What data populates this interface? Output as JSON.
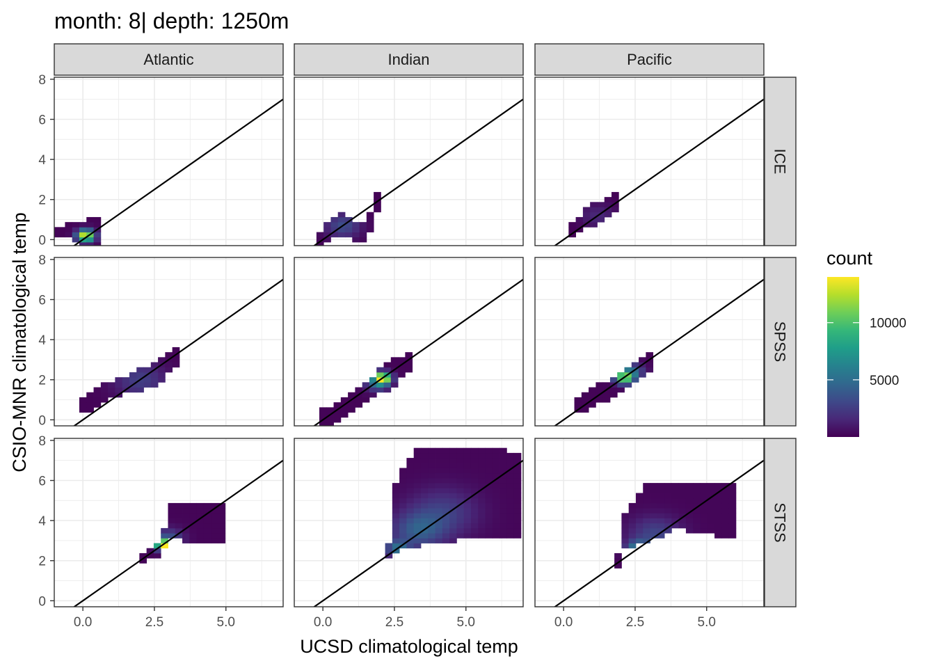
{
  "chart_data": {
    "type": "heatmap",
    "title": "month: 8| depth: 1250m",
    "xlabel": "UCSD climatological temp",
    "ylabel": "CSIO-MNR climatological temp",
    "col_facets": [
      "Atlantic",
      "Indian",
      "Pacific"
    ],
    "row_facets": [
      "ICE",
      "SPSS",
      "STSS"
    ],
    "xlim": [
      -1.0,
      7.0
    ],
    "ylim": [
      -0.3,
      8.1
    ],
    "x_ticks": [
      0.0,
      2.5,
      5.0
    ],
    "x_tick_labels": [
      "0.0",
      "2.5",
      "5.0"
    ],
    "y_ticks": [
      0,
      2,
      4,
      6,
      8
    ],
    "y_tick_labels": [
      "0",
      "2",
      "4",
      "6",
      "8"
    ],
    "bin_width": 0.25,
    "reference_line": {
      "intercept": 0,
      "slope": 1
    },
    "legend": {
      "title": "count",
      "breaks": [
        5000,
        10000
      ],
      "break_labels": [
        "5000",
        "10000"
      ],
      "range": [
        0,
        14000
      ],
      "colormap": "viridis"
    },
    "grid": true,
    "panels": [
      {
        "col": "Atlantic",
        "row": "ICE",
        "shape": [
          [
            -1.0,
            0.3,
            0.45,
            0.15
          ],
          [
            -0.5,
            0.15,
            0.5,
            0.25
          ],
          [
            0.4,
            1.5,
            0.35,
            0.8
          ],
          [
            0.5,
            1.5,
            0.15,
            1.0
          ]
        ],
        "peaks": [
          [
            0.1,
            0.2,
            14000,
            0.3
          ]
        ],
        "base": 120
      },
      {
        "col": "Indian",
        "row": "ICE",
        "shape": [
          [
            -0.1,
            0.0,
            0.0,
            0.4
          ],
          [
            0.5,
            0.35,
            0.9,
            0.45
          ],
          [
            1.5,
            1.7,
            0.35,
            0.45
          ],
          [
            1.9,
            1.7,
            1.95,
            0.35
          ]
        ],
        "peaks": [
          [
            0.7,
            0.7,
            3200,
            0.6
          ]
        ],
        "base": 100
      },
      {
        "col": "Pacific",
        "row": "ICE",
        "shape": [
          [
            0.3,
            0.5,
            0.5,
            0.35
          ],
          [
            0.9,
            0.5,
            1.2,
            0.45
          ],
          [
            1.9,
            1.5,
            1.95,
            0.4
          ]
        ],
        "peaks": [
          [
            1.2,
            1.2,
            1500,
            0.6
          ]
        ],
        "base": 80
      },
      {
        "col": "Atlantic",
        "row": "SPSS",
        "shape": [
          [
            0.0,
            0.0,
            0.8,
            0.4
          ],
          [
            1.0,
            0.9,
            1.6,
            0.35
          ],
          [
            2.5,
            2.8,
            2.3,
            0.5
          ],
          [
            3.3,
            3.3,
            3.3,
            0.5
          ]
        ],
        "peaks": [
          [
            2.0,
            2.0,
            2500,
            0.9
          ]
        ],
        "base": 120
      },
      {
        "col": "Indian",
        "row": "SPSS",
        "shape": [
          [
            0.0,
            0.0,
            0.0,
            0.5
          ],
          [
            1.2,
            1.2,
            1.15,
            0.45
          ],
          [
            2.2,
            2.0,
            2.15,
            0.6
          ],
          [
            3.1,
            3.0,
            3.0,
            0.5
          ]
        ],
        "peaks": [
          [
            2.1,
            2.1,
            13500,
            0.28
          ],
          [
            1.9,
            1.85,
            5000,
            0.4
          ]
        ],
        "base": 130
      },
      {
        "col": "Pacific",
        "row": "SPSS",
        "shape": [
          [
            0.5,
            0.5,
            0.8,
            0.35
          ],
          [
            1.5,
            1.4,
            1.5,
            0.45
          ],
          [
            2.6,
            2.7,
            2.55,
            0.5
          ],
          [
            3.0,
            3.0,
            3.0,
            0.45
          ]
        ],
        "peaks": [
          [
            2.1,
            2.1,
            11500,
            0.3
          ],
          [
            2.4,
            2.4,
            5000,
            0.4
          ]
        ],
        "base": 110
      },
      {
        "col": "Atlantic",
        "row": "STSS",
        "shape": [
          [
            2.1,
            2.6,
            2.2,
            0.2
          ],
          [
            2.6,
            2.8,
            2.6,
            0.35
          ],
          [
            2.9,
            2.9,
            3.3,
            0.45
          ],
          [
            3.1,
            4.8,
            4.0,
            0.85
          ],
          [
            4.9,
            5.1,
            4.0,
            1.0
          ]
        ],
        "peaks": [
          [
            2.8,
            2.8,
            14000,
            0.25
          ],
          [
            3.0,
            3.1,
            3500,
            0.5
          ]
        ],
        "base": 150
      },
      {
        "col": "Indian",
        "row": "STSS",
        "shape": [
          [
            2.3,
            2.7,
            2.5,
            0.35
          ],
          [
            2.5,
            3.0,
            4.2,
            1.6
          ],
          [
            3.2,
            4.0,
            5.2,
            2.4
          ],
          [
            4.5,
            5.8,
            5.4,
            2.3
          ],
          [
            5.8,
            6.8,
            5.5,
            2.2
          ],
          [
            6.9,
            6.9,
            5.3,
            2.05
          ]
        ],
        "peaks": [
          [
            2.6,
            2.6,
            4500,
            0.4
          ],
          [
            3.3,
            3.5,
            3500,
            0.9
          ],
          [
            4.2,
            4.4,
            2500,
            1.2
          ]
        ],
        "base": 200
      },
      {
        "col": "Pacific",
        "row": "STSS",
        "shape": [
          [
            1.9,
            2.1,
            2.1,
            0.25
          ],
          [
            2.1,
            3.0,
            3.5,
            0.8
          ],
          [
            2.9,
            4.0,
            4.5,
            1.4
          ],
          [
            4.0,
            5.0,
            4.8,
            1.1
          ],
          [
            5.6,
            5.3,
            4.6,
            1.3
          ],
          [
            5.9,
            4.8,
            4.6,
            1.3
          ]
        ],
        "peaks": [
          [
            2.6,
            2.6,
            5500,
            0.4
          ],
          [
            3.2,
            3.3,
            2800,
            0.9
          ]
        ],
        "base": 180
      }
    ]
  }
}
